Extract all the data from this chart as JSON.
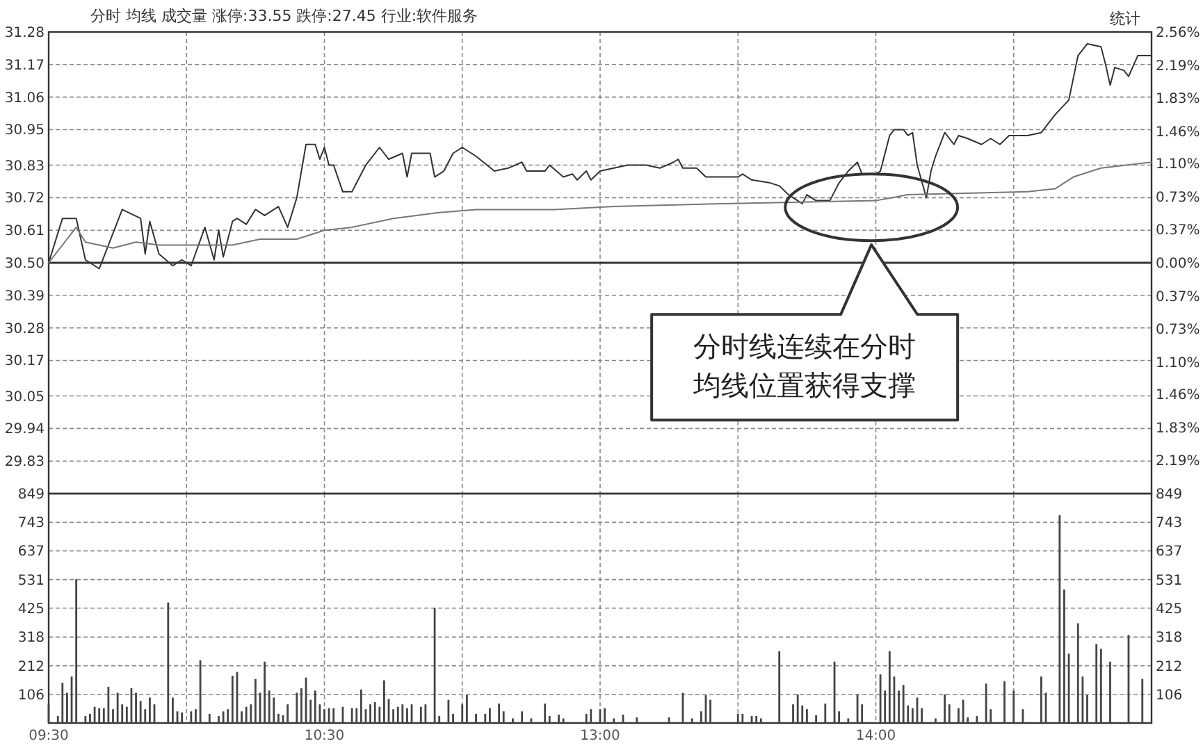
{
  "chart_data": [
    {
      "type": "line",
      "title": "分时 均线 成交量 涨停:33.55 跌停:27.45 行业:软件服务",
      "annotations": [
        "分时线连续在分时均线位置获得支撑",
        "统计"
      ],
      "categories": [
        null,
        null,
        null,
        null,
        null,
        null,
        null,
        null,
        null,
        null,
        null,
        null,
        null,
        null,
        null,
        null,
        null,
        null,
        null,
        null,
        null,
        null,
        null,
        null,
        null,
        null,
        null,
        null,
        null,
        null,
        null,
        null,
        null,
        null,
        null,
        null,
        null,
        null,
        null,
        null,
        null,
        null,
        null,
        null,
        null,
        null,
        null,
        null,
        null,
        null,
        null,
        null,
        null,
        null,
        null,
        null,
        null,
        null,
        null,
        null,
        null,
        null,
        null,
        null,
        null,
        null,
        null,
        null,
        null,
        null,
        null,
        null,
        null,
        null,
        null,
        null,
        null,
        null,
        null,
        null,
        null,
        null,
        null,
        null,
        null,
        null,
        null,
        null,
        null,
        null,
        null,
        null,
        null,
        null,
        null,
        null,
        null,
        null,
        null,
        null,
        null,
        null,
        null,
        null,
        null,
        null,
        null,
        null,
        null,
        null,
        null,
        null,
        null,
        null,
        null,
        null,
        null,
        null,
        null,
        null,
        null,
        null,
        null,
        null,
        null,
        null,
        null,
        null,
        null,
        null,
        null,
        null,
        null,
        null,
        null,
        null,
        null,
        null,
        null,
        null,
        null,
        null,
        null,
        null,
        null,
        null,
        null,
        null,
        null,
        null,
        null,
        null,
        null,
        null,
        null,
        null,
        null,
        null,
        null,
        null,
        null,
        null,
        null,
        null,
        null,
        null,
        null,
        null,
        null,
        null,
        null,
        null,
        null,
        null,
        null,
        null,
        null,
        null,
        null,
        null,
        null,
        null,
        null,
        null,
        null,
        null,
        null,
        null,
        null,
        null,
        null,
        null,
        null,
        null,
        null,
        null,
        null,
        null,
        null,
        null,
        null,
        null,
        null,
        null,
        null,
        null,
        null,
        null,
        null,
        null,
        null,
        null,
        null,
        null,
        null,
        null,
        null,
        null,
        null,
        null,
        null,
        null,
        null,
        null,
        null,
        null,
        null,
        null,
        null,
        null,
        null,
        null,
        null,
        null,
        null,
        null,
        null,
        null,
        null,
        null,
        null
      ],
      "ylim": [
        29.72,
        31.28
      ],
      "yticks": [
        31.28,
        31.17,
        31.06,
        30.95,
        30.83,
        30.72,
        30.61,
        {
          "value": 30.5,
          "label": "30.50"
        },
        30.39,
        30.28,
        30.17,
        30.05,
        29.94,
        29.83
      ],
      "y2lim": [
        -2.56,
        2.56
      ],
      "y2ticks": [
        {
          "value": 2.56,
          "label": "2.56%"
        },
        {
          "value": 2.19,
          "label": "2.19%"
        },
        {
          "value": 1.83,
          "label": "1.83%"
        },
        {
          "value": 1.46,
          "label": "1.46%"
        },
        {
          "value": 1.1,
          "label": "1.10%"
        },
        {
          "value": 0.73,
          "label": "0.73%"
        },
        {
          "value": 0.37,
          "label": "0.37%"
        },
        {
          "value": 0,
          "label": "0.00%"
        },
        {
          "value": -0.37,
          "label": "0.37%"
        },
        {
          "value": -0.73,
          "label": "0.73%"
        },
        {
          "value": -1.1,
          "label": "1.10%"
        },
        {
          "value": -1.46,
          "label": "1.46%"
        },
        {
          "value": -1.83,
          "label": "1.83%"
        },
        {
          "value": -2.19,
          "label": "2.19%"
        }
      ],
      "tick_labels": "y",
      "grid": true,
      "ref_lines": [
        {
          "axis": "y",
          "value": 30.5,
          "color": "#333333"
        }
      ],
      "series": [
        {
          "color": "#333333",
          "values": [
            30.5,
            null,
            null,
            30.65,
            null,
            null,
            30.65,
            null,
            30.51,
            null,
            null,
            30.48,
            null,
            null,
            null,
            null,
            30.68,
            null,
            null,
            null,
            30.65,
            30.53,
            30.64,
            null,
            30.53,
            null,
            null,
            30.49,
            null,
            30.51,
            null,
            30.49,
            null,
            null,
            30.62,
            null,
            30.51,
            30.61,
            30.52,
            null,
            30.64,
            30.65,
            null,
            30.63,
            null,
            30.68,
            null,
            30.66,
            null,
            null,
            30.69,
            null,
            30.62,
            null,
            30.72,
            null,
            30.9,
            null,
            30.9,
            30.85,
            30.89,
            30.83,
            30.83,
            null,
            30.74,
            null,
            30.74,
            null,
            null,
            30.83,
            null,
            null,
            30.89,
            null,
            30.85,
            null,
            null,
            30.87,
            30.79,
            30.87,
            null,
            null,
            null,
            30.87,
            30.79,
            null,
            30.81,
            null,
            30.87,
            null,
            30.89,
            null,
            null,
            30.86,
            null,
            null,
            null,
            30.81,
            null,
            null,
            30.82,
            null,
            null,
            30.84,
            30.81,
            null,
            null,
            null,
            30.81,
            30.83,
            null,
            null,
            30.79,
            null,
            30.8,
            30.78,
            null,
            30.81,
            30.78,
            null,
            30.81,
            null,
            null,
            null,
            null,
            null,
            30.83,
            null,
            null,
            null,
            30.83,
            null,
            null,
            30.82,
            null,
            null,
            30.84,
            30.85,
            30.82,
            null,
            null,
            30.82,
            null,
            30.79,
            null,
            null,
            null,
            30.79,
            null,
            null,
            30.79,
            30.8,
            null,
            30.78,
            null,
            null,
            null,
            30.77,
            null,
            30.76,
            null,
            30.73,
            null,
            null,
            30.7,
            30.73,
            null,
            30.71,
            null,
            null,
            30.71,
            null,
            30.77,
            30.79,
            30.81,
            null,
            30.84,
            30.8,
            null,
            30.8,
            30.8,
            30.81,
            null,
            30.93,
            30.95,
            null,
            30.95,
            30.93,
            30.94,
            30.83,
            null,
            30.72,
            30.81,
            30.86,
            null,
            30.94,
            null,
            30.9,
            30.93,
            null,
            30.92,
            null,
            null,
            30.9,
            null,
            30.92,
            null,
            30.9,
            null,
            30.93,
            null,
            null,
            null,
            30.93,
            null,
            null,
            30.94,
            null,
            null,
            31.0,
            null,
            null,
            31.05,
            null,
            31.2,
            null,
            31.24,
            null,
            null,
            31.23,
            31.17,
            31.1,
            31.16,
            null,
            31.15,
            31.13,
            null,
            31.2,
            null,
            null,
            31.2
          ]
        },
        {
          "color": "#777777",
          "values": [
            30.5,
            null,
            null,
            null,
            null,
            null,
            30.62,
            null,
            30.57,
            null,
            null,
            null,
            null,
            null,
            30.55,
            null,
            null,
            null,
            null,
            30.57,
            null,
            null,
            null,
            null,
            30.56,
            null,
            null,
            null,
            null,
            null,
            null,
            null,
            30.56,
            null,
            null,
            null,
            null,
            null,
            null,
            null,
            30.56,
            null,
            null,
            null,
            null,
            null,
            30.58,
            null,
            null,
            null,
            null,
            null,
            null,
            null,
            30.58,
            null,
            null,
            null,
            null,
            null,
            30.61,
            null,
            null,
            null,
            null,
            null,
            30.62,
            null,
            null,
            null,
            null,
            null,
            null,
            null,
            null,
            30.65,
            null,
            null,
            null,
            null,
            null,
            null,
            null,
            null,
            null,
            30.67,
            null,
            null,
            null,
            null,
            null,
            null,
            null,
            30.68,
            null,
            null,
            null,
            null,
            null,
            null,
            null,
            null,
            null,
            null,
            null,
            null,
            null,
            null,
            null,
            null,
            30.68,
            null,
            null,
            null,
            null,
            null,
            null,
            null,
            null,
            null,
            null,
            null,
            null,
            30.69,
            null,
            null,
            null,
            null,
            null,
            null,
            null,
            null,
            null,
            null,
            null,
            null,
            null,
            null,
            null,
            null,
            null,
            null,
            null,
            null,
            null,
            null,
            null,
            30.7,
            null,
            null,
            null,
            null,
            null,
            null,
            null,
            null,
            null,
            null,
            null,
            null,
            null,
            null,
            null,
            null,
            null,
            null,
            null,
            null,
            null,
            null,
            null,
            null,
            null,
            null,
            null,
            null,
            null,
            null,
            null,
            null,
            30.71,
            null,
            null,
            null,
            null,
            null,
            null,
            30.73,
            null,
            null,
            null,
            null,
            null,
            null,
            null,
            null,
            null,
            null,
            null,
            null,
            null,
            null,
            null,
            null,
            null,
            null,
            null,
            null,
            null,
            null,
            null,
            null,
            null,
            30.74,
            null,
            null,
            null,
            null,
            null,
            30.75,
            null,
            null,
            null,
            30.79,
            null,
            null,
            null,
            null,
            null,
            30.82,
            null,
            null,
            null,
            null,
            null,
            null,
            null,
            null,
            null,
            null,
            30.84
          ]
        }
      ]
    },
    {
      "type": "bar",
      "categories": [
        "09:30",
        null,
        null,
        null,
        null,
        null,
        null,
        null,
        null,
        null,
        null,
        null,
        null,
        null,
        null,
        null,
        null,
        null,
        null,
        null,
        null,
        null,
        null,
        null,
        null,
        null,
        null,
        null,
        null,
        null,
        null,
        null,
        null,
        null,
        null,
        null,
        null,
        null,
        null,
        null,
        null,
        null,
        null,
        null,
        null,
        null,
        null,
        null,
        null,
        null,
        null,
        null,
        null,
        null,
        null,
        null,
        null,
        null,
        null,
        null,
        "10:30",
        null,
        null,
        null,
        null,
        null,
        null,
        null,
        null,
        null,
        null,
        null,
        null,
        null,
        null,
        null,
        null,
        null,
        null,
        null,
        null,
        null,
        null,
        null,
        null,
        null,
        null,
        null,
        null,
        null,
        null,
        null,
        null,
        null,
        null,
        null,
        null,
        null,
        null,
        null,
        null,
        null,
        null,
        null,
        null,
        null,
        null,
        null,
        null,
        null,
        null,
        null,
        null,
        null,
        null,
        null,
        null,
        null,
        null,
        null,
        "13:00",
        null,
        null,
        null,
        null,
        null,
        null,
        null,
        null,
        null,
        null,
        null,
        null,
        null,
        null,
        null,
        null,
        null,
        null,
        null,
        null,
        null,
        null,
        null,
        null,
        null,
        null,
        null,
        null,
        null,
        null,
        null,
        null,
        null,
        null,
        null,
        null,
        null,
        null,
        null,
        null,
        null,
        null,
        null,
        null,
        null,
        null,
        null,
        null,
        null,
        null,
        null,
        null,
        null,
        null,
        null,
        null,
        null,
        null,
        null,
        "14:00",
        null,
        null,
        null,
        null,
        null,
        null,
        null,
        null,
        null,
        null,
        null,
        null,
        null,
        null,
        null,
        null,
        null,
        null,
        null,
        null,
        null,
        null,
        null,
        null,
        null,
        null,
        null,
        null,
        null,
        null,
        null,
        null,
        null,
        null,
        null,
        null,
        null,
        null,
        null,
        null,
        null,
        null,
        null,
        null,
        null,
        null,
        null,
        null,
        null,
        null,
        null,
        null,
        null,
        null,
        null,
        null,
        null,
        null,
        null,
        null
      ],
      "ylim": [
        0,
        849
      ],
      "yticks": [
        849,
        743,
        637,
        531,
        425,
        318,
        212,
        106
      ],
      "y2lim": [
        0,
        849
      ],
      "y2ticks": [
        849,
        743,
        637,
        531,
        425,
        318,
        212,
        106
      ],
      "grid": true,
      "series": [
        {
          "color": "#444444",
          "values": [
            69,
            null,
            26,
            149,
            112,
            172,
            532,
            null,
            26,
            34,
            60,
            55,
            55,
            134,
            51,
            112,
            69,
            60,
            129,
            112,
            82,
            51,
            94,
            69,
            null,
            null,
            446,
            94,
            43,
            39,
            null,
            43,
            51,
            232,
            null,
            34,
            null,
            26,
            43,
            51,
            175,
            189,
            43,
            60,
            69,
            163,
            112,
            227,
            120,
            94,
            34,
            29,
            69,
            null,
            112,
            129,
            168,
            86,
            120,
            69,
            51,
            55,
            55,
            null,
            60,
            null,
            55,
            55,
            124,
            51,
            69,
            77,
            60,
            158,
            89,
            51,
            60,
            69,
            55,
            69,
            null,
            60,
            69,
            null,
            426,
            26,
            null,
            86,
            34,
            null,
            69,
            103,
            null,
            34,
            null,
            34,
            55,
            null,
            72,
            43,
            null,
            17,
            null,
            43,
            null,
            17,
            null,
            null,
            72,
            26,
            null,
            31,
            17,
            null,
            null,
            null,
            null,
            34,
            51,
            null,
            51,
            55,
            null,
            17,
            null,
            31,
            null,
            null,
            21,
            null,
            null,
            null,
            null,
            null,
            null,
            21,
            null,
            null,
            112,
            null,
            17,
            null,
            43,
            103,
            86,
            null,
            null,
            null,
            null,
            null,
            34,
            34,
            null,
            26,
            26,
            17,
            null,
            null,
            null,
            266,
            null,
            null,
            69,
            106,
            65,
            51,
            null,
            29,
            null,
            72,
            null,
            227,
            43,
            null,
            17,
            null,
            106,
            69,
            null,
            null,
            null,
            180,
            120,
            266,
            172,
            120,
            141,
            65,
            55,
            94,
            55,
            null,
            null,
            17,
            null,
            106,
            69,
            null,
            55,
            86,
            21,
            null,
            26,
            null,
            146,
            51,
            null,
            null,
            155,
            null,
            120,
            null,
            51,
            null,
            null,
            null,
            172,
            112,
            null,
            null,
            769,
            494,
            257,
            null,
            369,
            172,
            103,
            null,
            292,
            275,
            null,
            227,
            null,
            null,
            null,
            326,
            null,
            null,
            163,
            null,
            null
          ]
        }
      ]
    }
  ]
}
